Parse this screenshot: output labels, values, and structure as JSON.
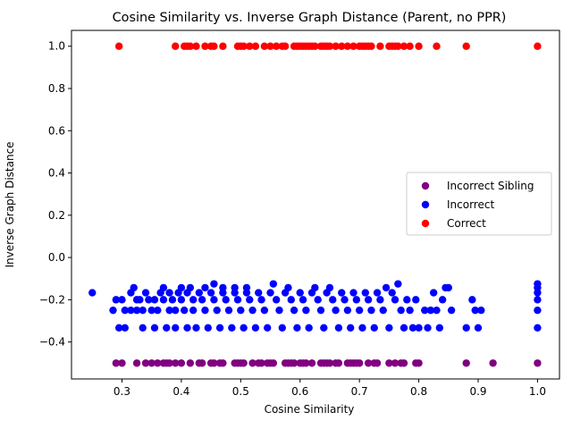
{
  "chart_data": {
    "type": "scatter",
    "title": "Cosine Similarity vs. Inverse Graph Distance (Parent, no PPR)",
    "xlabel": "Cosine Similarity",
    "ylabel": "Inverse Graph Distance",
    "xlim": [
      0.215,
      1.037
    ],
    "ylim": [
      -0.575,
      1.075
    ],
    "x_ticks": [
      0.3,
      0.4,
      0.5,
      0.6,
      0.7,
      0.8,
      0.9,
      1.0
    ],
    "x_tick_labels": [
      "0.3",
      "0.4",
      "0.5",
      "0.6",
      "0.7",
      "0.8",
      "0.9",
      "1.0"
    ],
    "y_ticks": [
      -0.4,
      -0.2,
      0.0,
      0.2,
      0.4,
      0.6,
      0.8,
      1.0
    ],
    "y_tick_labels": [
      "−0.4",
      "−0.2",
      "0.0",
      "0.2",
      "0.4",
      "0.6",
      "0.8",
      "1.0"
    ],
    "grid": false,
    "legend_position": "center-right",
    "series": [
      {
        "name": "Incorrect Sibling",
        "color": "#800080",
        "points": [
          [
            0.29,
            -0.5
          ],
          [
            0.3,
            -0.5
          ],
          [
            0.325,
            -0.5
          ],
          [
            0.34,
            -0.5
          ],
          [
            0.35,
            -0.5
          ],
          [
            0.36,
            -0.5
          ],
          [
            0.37,
            -0.5
          ],
          [
            0.375,
            -0.5
          ],
          [
            0.38,
            -0.5
          ],
          [
            0.39,
            -0.5
          ],
          [
            0.4,
            -0.5
          ],
          [
            0.415,
            -0.5
          ],
          [
            0.43,
            -0.5
          ],
          [
            0.435,
            -0.5
          ],
          [
            0.45,
            -0.5
          ],
          [
            0.455,
            -0.5
          ],
          [
            0.465,
            -0.5
          ],
          [
            0.47,
            -0.5
          ],
          [
            0.49,
            -0.5
          ],
          [
            0.495,
            -0.5
          ],
          [
            0.5,
            -0.5
          ],
          [
            0.505,
            -0.5
          ],
          [
            0.52,
            -0.5
          ],
          [
            0.53,
            -0.5
          ],
          [
            0.535,
            -0.5
          ],
          [
            0.545,
            -0.5
          ],
          [
            0.55,
            -0.5
          ],
          [
            0.555,
            -0.5
          ],
          [
            0.575,
            -0.5
          ],
          [
            0.58,
            -0.5
          ],
          [
            0.585,
            -0.5
          ],
          [
            0.59,
            -0.5
          ],
          [
            0.6,
            -0.5
          ],
          [
            0.605,
            -0.5
          ],
          [
            0.61,
            -0.5
          ],
          [
            0.62,
            -0.5
          ],
          [
            0.635,
            -0.5
          ],
          [
            0.64,
            -0.5
          ],
          [
            0.645,
            -0.5
          ],
          [
            0.65,
            -0.5
          ],
          [
            0.66,
            -0.5
          ],
          [
            0.665,
            -0.5
          ],
          [
            0.68,
            -0.5
          ],
          [
            0.685,
            -0.5
          ],
          [
            0.69,
            -0.5
          ],
          [
            0.695,
            -0.5
          ],
          [
            0.7,
            -0.5
          ],
          [
            0.715,
            -0.5
          ],
          [
            0.725,
            -0.5
          ],
          [
            0.73,
            -0.5
          ],
          [
            0.75,
            -0.5
          ],
          [
            0.76,
            -0.5
          ],
          [
            0.77,
            -0.5
          ],
          [
            0.775,
            -0.5
          ],
          [
            0.795,
            -0.5
          ],
          [
            0.8,
            -0.5
          ],
          [
            0.88,
            -0.5
          ],
          [
            0.925,
            -0.5
          ],
          [
            1.0,
            -0.5
          ]
        ]
      },
      {
        "name": "Incorrect",
        "color": "#0000ff",
        "points": [
          [
            0.25,
            -0.167
          ],
          [
            0.285,
            -0.25
          ],
          [
            0.29,
            -0.2
          ],
          [
            0.295,
            -0.333
          ],
          [
            0.3,
            -0.2
          ],
          [
            0.305,
            -0.333
          ],
          [
            0.305,
            -0.25
          ],
          [
            0.315,
            -0.25
          ],
          [
            0.315,
            -0.167
          ],
          [
            0.32,
            -0.143
          ],
          [
            0.325,
            -0.2
          ],
          [
            0.325,
            -0.25
          ],
          [
            0.33,
            -0.2
          ],
          [
            0.335,
            -0.25
          ],
          [
            0.335,
            -0.333
          ],
          [
            0.34,
            -0.167
          ],
          [
            0.345,
            -0.2
          ],
          [
            0.35,
            -0.25
          ],
          [
            0.355,
            -0.333
          ],
          [
            0.355,
            -0.2
          ],
          [
            0.36,
            -0.25
          ],
          [
            0.365,
            -0.167
          ],
          [
            0.37,
            -0.143
          ],
          [
            0.37,
            -0.2
          ],
          [
            0.375,
            -0.333
          ],
          [
            0.38,
            -0.25
          ],
          [
            0.38,
            -0.167
          ],
          [
            0.385,
            -0.2
          ],
          [
            0.39,
            -0.25
          ],
          [
            0.39,
            -0.333
          ],
          [
            0.395,
            -0.167
          ],
          [
            0.4,
            -0.143
          ],
          [
            0.4,
            -0.2
          ],
          [
            0.405,
            -0.25
          ],
          [
            0.41,
            -0.333
          ],
          [
            0.41,
            -0.167
          ],
          [
            0.415,
            -0.143
          ],
          [
            0.42,
            -0.2
          ],
          [
            0.42,
            -0.25
          ],
          [
            0.425,
            -0.333
          ],
          [
            0.43,
            -0.167
          ],
          [
            0.435,
            -0.2
          ],
          [
            0.44,
            -0.25
          ],
          [
            0.44,
            -0.143
          ],
          [
            0.445,
            -0.333
          ],
          [
            0.45,
            -0.167
          ],
          [
            0.455,
            -0.125
          ],
          [
            0.455,
            -0.2
          ],
          [
            0.46,
            -0.25
          ],
          [
            0.465,
            -0.333
          ],
          [
            0.47,
            -0.143
          ],
          [
            0.47,
            -0.167
          ],
          [
            0.475,
            -0.2
          ],
          [
            0.48,
            -0.25
          ],
          [
            0.485,
            -0.333
          ],
          [
            0.49,
            -0.143
          ],
          [
            0.49,
            -0.167
          ],
          [
            0.495,
            -0.2
          ],
          [
            0.5,
            -0.25
          ],
          [
            0.505,
            -0.333
          ],
          [
            0.51,
            -0.143
          ],
          [
            0.51,
            -0.167
          ],
          [
            0.515,
            -0.2
          ],
          [
            0.52,
            -0.25
          ],
          [
            0.525,
            -0.333
          ],
          [
            0.53,
            -0.167
          ],
          [
            0.535,
            -0.2
          ],
          [
            0.54,
            -0.25
          ],
          [
            0.545,
            -0.333
          ],
          [
            0.55,
            -0.167
          ],
          [
            0.555,
            -0.125
          ],
          [
            0.56,
            -0.2
          ],
          [
            0.565,
            -0.25
          ],
          [
            0.57,
            -0.333
          ],
          [
            0.575,
            -0.167
          ],
          [
            0.58,
            -0.143
          ],
          [
            0.585,
            -0.2
          ],
          [
            0.59,
            -0.25
          ],
          [
            0.595,
            -0.333
          ],
          [
            0.6,
            -0.167
          ],
          [
            0.605,
            -0.2
          ],
          [
            0.61,
            -0.25
          ],
          [
            0.615,
            -0.333
          ],
          [
            0.62,
            -0.167
          ],
          [
            0.625,
            -0.143
          ],
          [
            0.63,
            -0.2
          ],
          [
            0.635,
            -0.25
          ],
          [
            0.64,
            -0.333
          ],
          [
            0.645,
            -0.167
          ],
          [
            0.65,
            -0.143
          ],
          [
            0.655,
            -0.2
          ],
          [
            0.66,
            -0.25
          ],
          [
            0.665,
            -0.333
          ],
          [
            0.67,
            -0.167
          ],
          [
            0.675,
            -0.2
          ],
          [
            0.68,
            -0.25
          ],
          [
            0.685,
            -0.333
          ],
          [
            0.69,
            -0.167
          ],
          [
            0.695,
            -0.2
          ],
          [
            0.7,
            -0.25
          ],
          [
            0.705,
            -0.333
          ],
          [
            0.71,
            -0.167
          ],
          [
            0.715,
            -0.2
          ],
          [
            0.72,
            -0.25
          ],
          [
            0.725,
            -0.333
          ],
          [
            0.73,
            -0.167
          ],
          [
            0.735,
            -0.2
          ],
          [
            0.74,
            -0.25
          ],
          [
            0.745,
            -0.143
          ],
          [
            0.75,
            -0.333
          ],
          [
            0.755,
            -0.167
          ],
          [
            0.76,
            -0.2
          ],
          [
            0.765,
            -0.125
          ],
          [
            0.77,
            -0.25
          ],
          [
            0.775,
            -0.333
          ],
          [
            0.78,
            -0.2
          ],
          [
            0.785,
            -0.25
          ],
          [
            0.79,
            -0.333
          ],
          [
            0.795,
            -0.2
          ],
          [
            0.8,
            -0.333
          ],
          [
            0.81,
            -0.25
          ],
          [
            0.815,
            -0.333
          ],
          [
            0.82,
            -0.25
          ],
          [
            0.825,
            -0.167
          ],
          [
            0.83,
            -0.25
          ],
          [
            0.835,
            -0.333
          ],
          [
            0.84,
            -0.2
          ],
          [
            0.845,
            -0.143
          ],
          [
            0.85,
            -0.143
          ],
          [
            0.855,
            -0.25
          ],
          [
            0.88,
            -0.333
          ],
          [
            0.89,
            -0.2
          ],
          [
            0.895,
            -0.25
          ],
          [
            0.9,
            -0.333
          ],
          [
            0.905,
            -0.25
          ],
          [
            1.0,
            -0.125
          ],
          [
            1.0,
            -0.143
          ],
          [
            1.0,
            -0.167
          ],
          [
            1.0,
            -0.2
          ],
          [
            1.0,
            -0.25
          ],
          [
            1.0,
            -0.333
          ]
        ]
      },
      {
        "name": "Correct",
        "color": "#ff0000",
        "points": [
          [
            0.295,
            1.0
          ],
          [
            0.39,
            1.0
          ],
          [
            0.405,
            1.0
          ],
          [
            0.41,
            1.0
          ],
          [
            0.415,
            1.0
          ],
          [
            0.425,
            1.0
          ],
          [
            0.44,
            1.0
          ],
          [
            0.45,
            1.0
          ],
          [
            0.455,
            1.0
          ],
          [
            0.47,
            1.0
          ],
          [
            0.495,
            1.0
          ],
          [
            0.5,
            1.0
          ],
          [
            0.505,
            1.0
          ],
          [
            0.515,
            1.0
          ],
          [
            0.525,
            1.0
          ],
          [
            0.54,
            1.0
          ],
          [
            0.55,
            1.0
          ],
          [
            0.56,
            1.0
          ],
          [
            0.57,
            1.0
          ],
          [
            0.575,
            1.0
          ],
          [
            0.59,
            1.0
          ],
          [
            0.595,
            1.0
          ],
          [
            0.6,
            1.0
          ],
          [
            0.605,
            1.0
          ],
          [
            0.61,
            1.0
          ],
          [
            0.615,
            1.0
          ],
          [
            0.62,
            1.0
          ],
          [
            0.625,
            1.0
          ],
          [
            0.635,
            1.0
          ],
          [
            0.64,
            1.0
          ],
          [
            0.645,
            1.0
          ],
          [
            0.65,
            1.0
          ],
          [
            0.66,
            1.0
          ],
          [
            0.67,
            1.0
          ],
          [
            0.68,
            1.0
          ],
          [
            0.69,
            1.0
          ],
          [
            0.7,
            1.0
          ],
          [
            0.705,
            1.0
          ],
          [
            0.71,
            1.0
          ],
          [
            0.715,
            1.0
          ],
          [
            0.72,
            1.0
          ],
          [
            0.735,
            1.0
          ],
          [
            0.75,
            1.0
          ],
          [
            0.755,
            1.0
          ],
          [
            0.76,
            1.0
          ],
          [
            0.765,
            1.0
          ],
          [
            0.775,
            1.0
          ],
          [
            0.785,
            1.0
          ],
          [
            0.8,
            1.0
          ],
          [
            0.83,
            1.0
          ],
          [
            0.88,
            1.0
          ],
          [
            1.0,
            1.0
          ]
        ]
      }
    ]
  }
}
